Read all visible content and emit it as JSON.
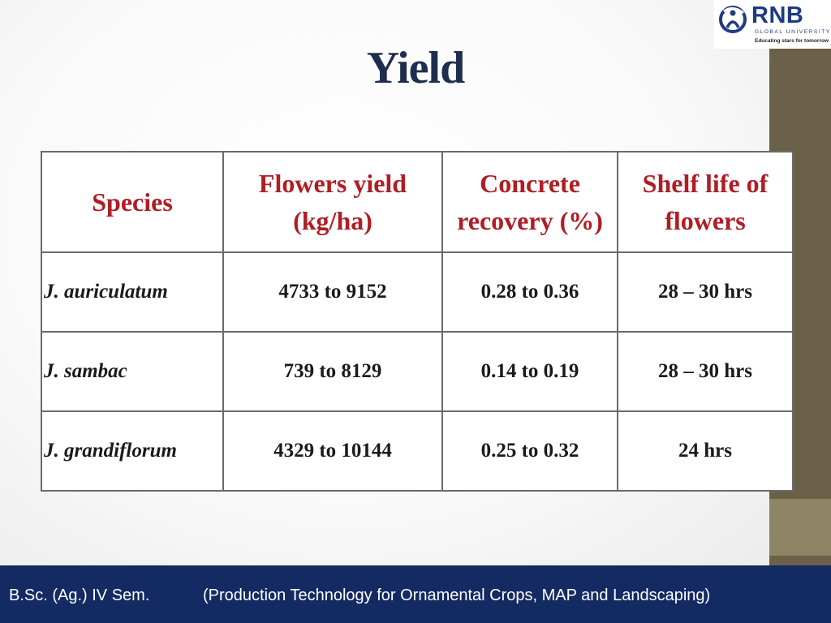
{
  "slide": {
    "title": "Yield"
  },
  "logo": {
    "name": "RNB",
    "subtitle": "GLOBAL UNIVERSITY",
    "tagline": "Educating stars for tomorrow",
    "brand_color": "#1f3b82"
  },
  "table": {
    "headers": [
      "Species",
      "Flowers yield (kg/ha)",
      "Concrete recovery (%)",
      "Shelf life of flowers"
    ],
    "rows": [
      {
        "species": "J. auriculatum",
        "flowers_yield": "4733 to 9152",
        "concrete_recovery": "0.28 to 0.36",
        "shelf_life": "28 – 30 hrs"
      },
      {
        "species": "J. sambac",
        "flowers_yield": "739 to 8129",
        "concrete_recovery": "0.14 to 0.19",
        "shelf_life": "28 – 30 hrs"
      },
      {
        "species": "J. grandiflorum",
        "flowers_yield": "4329 to 10144",
        "concrete_recovery": "0.25 to 0.32",
        "shelf_life": "24 hrs"
      }
    ],
    "header_color": "#b01d24"
  },
  "footer": {
    "course": "B.Sc. (Ag.) IV Sem.",
    "subject": "(Production Technology for Ornamental Crops, MAP and Landscaping)",
    "bg_color": "#142a63"
  }
}
